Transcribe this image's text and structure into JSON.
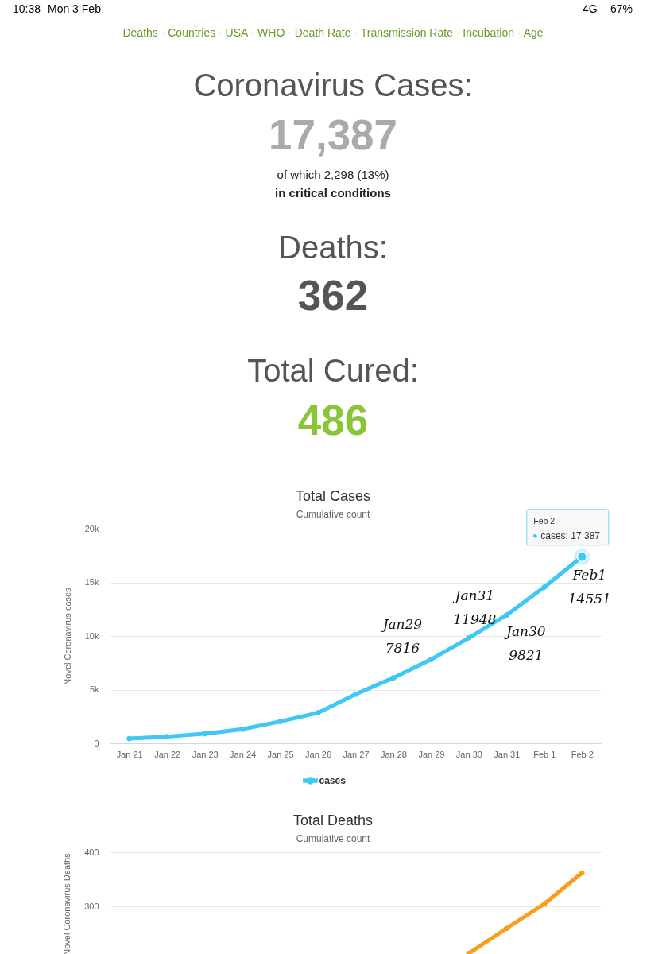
{
  "chart_data": [
    {
      "type": "other",
      "annotations": [
        "10:38",
        "Mon 3 Feb",
        "4G",
        "67%",
        "Deaths - Countries - USA - WHO - Death Rate - Transmission Rate - Incubation - Age",
        "Coronavirus Cases:",
        "17,387",
        "of which 2,298 (13%)",
        "in critical conditions",
        "Deaths:",
        "362",
        "Total Cured:",
        "486"
      ]
    },
    {
      "type": "line",
      "title": "Total Cases",
      "subtitle": "Cumulative count",
      "ylabel": "Novel Coronavirus cases",
      "categories": [
        "Jan 21",
        "Jan 22",
        "Jan 23",
        "Jan 24",
        "Jan 25",
        "Jan 26",
        "Jan 27",
        "Jan 28",
        "Jan 29",
        "Jan 30",
        "Jan 31",
        "Feb 1",
        "Feb 2"
      ],
      "series": [
        {
          "name": "cases",
          "color": "#3fc8f4",
          "values": [
            440,
            620,
            890,
            1310,
            2030,
            2840,
            4570,
            6100,
            7816,
            9821,
            11948,
            14551,
            17387
          ]
        }
      ],
      "ylim": [
        0,
        20000
      ],
      "yticks": [
        0,
        {
          "value": 5000,
          "label": "5k"
        },
        {
          "value": 10000,
          "label": "10k"
        },
        {
          "value": 15000,
          "label": "15k"
        },
        {
          "value": 20000,
          "label": "20k"
        }
      ],
      "grid": "y",
      "legend": "bottom",
      "marker": "circle",
      "line_style": "solid",
      "annotations": [
        "Feb 2",
        {
          "text": "cases: 17 387",
          "x": "Feb 2",
          "y": 17387
        },
        {
          "text": "Jan29 7816",
          "x": "Jan 29",
          "y": 7816
        },
        {
          "text": "Jan30 9821",
          "x": "Jan 30",
          "y": 9821
        },
        {
          "text": "Jan31 11948",
          "x": "Jan 31",
          "y": 11948
        },
        {
          "text": "Feb1 14551",
          "x": "Feb 1",
          "y": 14551
        }
      ]
    },
    {
      "type": "line",
      "title": "Total Deaths",
      "subtitle": "Cumulative count",
      "ylabel": "Novel Coronavirus Deaths",
      "categories": [
        null,
        null,
        null,
        null,
        null,
        null,
        null,
        null,
        null,
        null,
        null,
        null,
        null
      ],
      "series": [
        {
          "color": "#f99e1a",
          "values": [
            null,
            null,
            null,
            null,
            null,
            null,
            null,
            null,
            null,
            214,
            260,
            305,
            362
          ]
        }
      ],
      "ylim": [
        210,
        400
      ],
      "yticks": [
        300,
        400
      ],
      "grid": "y",
      "marker": "circle",
      "line_style": "solid",
      "tick_labels": "y"
    }
  ]
}
